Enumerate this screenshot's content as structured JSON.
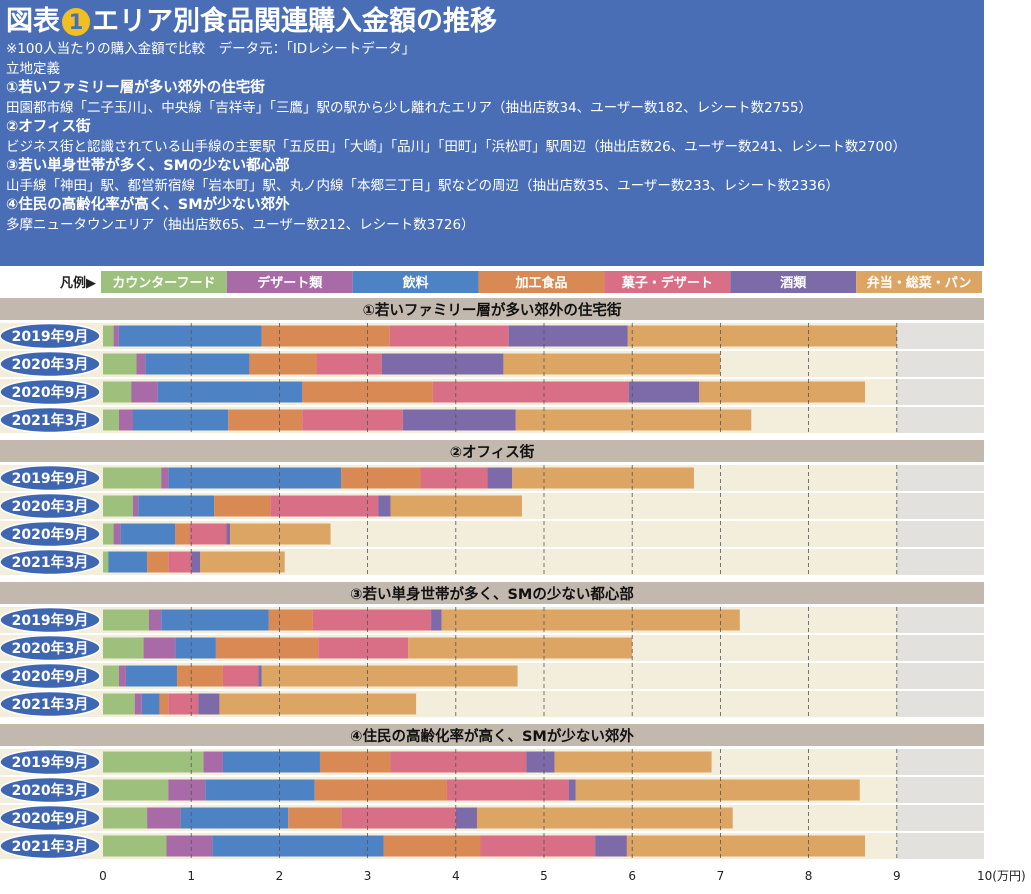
{
  "header": {
    "title_prefix": "図表",
    "title_number": "1",
    "title": "エリア別食品関連購入金額の推移",
    "note": "※100人当たりの購入金額で比較　データ元：「IDレシートデータ」",
    "def_heading": "立地定義",
    "areas": [
      {
        "name": "①若いファミリー層が多い郊外の住宅街",
        "desc": "田園都市線「二子玉川」、中央線「吉祥寺」「三鷹」駅の駅から少し離れたエリア（抽出店数34、ユーザー数182、レシート数2755）"
      },
      {
        "name": "②オフィス街",
        "desc": "ビジネス街と認識されている山手線の主要駅「五反田」「大崎」「品川」「田町」「浜松町」駅周辺（抽出店数26、ユーザー数241、レシート数2700）"
      },
      {
        "name": "③若い単身世帯が多く、SMの少ない都心部",
        "desc": "山手線「神田」駅、都営新宿線「岩本町」駅、丸ノ内線「本郷三丁目」駅などの周辺（抽出店数35、ユーザー数233、レシート数2336）"
      },
      {
        "name": "④住民の高齢化率が高く、SMが少ない郊外",
        "desc": "多摩ニュータウンエリア（抽出店数65、ユーザー数212、レシート数3726）"
      }
    ]
  },
  "legend_label": "凡例▶",
  "colors": {
    "header_bg": "#4a6eb5",
    "group_header_bg": "#c3b8ad",
    "band_cream": "#f3eedc",
    "band_gray": "#e3e1de",
    "label_oval": "#3f67b1"
  },
  "chart_data": {
    "type": "bar",
    "orientation": "horizontal",
    "stacked": true,
    "unit": "(万円)",
    "xlim": [
      0,
      10
    ],
    "xticks": [
      0,
      1,
      2,
      3,
      4,
      5,
      6,
      7,
      8,
      9,
      10
    ],
    "xtick_labels": [
      "0",
      "1",
      "2",
      "3",
      "4",
      "5",
      "6",
      "7",
      "8",
      "9",
      "10(万円)"
    ],
    "series": [
      {
        "name": "カウンターフード",
        "color": "#9dc07c"
      },
      {
        "name": "デザート類",
        "color": "#a96aa8"
      },
      {
        "name": "飲料",
        "color": "#4d82c4"
      },
      {
        "name": "加工食品",
        "color": "#d98a54"
      },
      {
        "name": "菓子・デザート",
        "color": "#d96f86"
      },
      {
        "name": "酒類",
        "color": "#7c6aa9"
      },
      {
        "name": "弁当・総菜・パン",
        "color": "#dca563"
      }
    ],
    "groups": [
      {
        "title": "①若いファミリー層が多い郊外の住宅街",
        "rows": [
          {
            "label": "2019年9月",
            "values": [
              0.12,
              0.06,
              1.62,
              1.45,
              1.35,
              1.35,
              3.05
            ]
          },
          {
            "label": "2020年3月",
            "values": [
              0.38,
              0.1,
              1.18,
              0.76,
              0.74,
              1.38,
              2.46
            ]
          },
          {
            "label": "2020年9月",
            "values": [
              0.32,
              0.3,
              1.64,
              1.48,
              2.22,
              0.8,
              1.88
            ]
          },
          {
            "label": "2021年3月",
            "values": [
              0.18,
              0.16,
              1.08,
              0.84,
              1.14,
              1.28,
              2.67
            ]
          }
        ]
      },
      {
        "title": "②オフィス街",
        "rows": [
          {
            "label": "2019年9月",
            "values": [
              0.66,
              0.08,
              1.96,
              0.9,
              0.76,
              0.28,
              2.06
            ]
          },
          {
            "label": "2020年3月",
            "values": [
              0.34,
              0.06,
              0.86,
              0.64,
              1.22,
              0.14,
              1.49
            ]
          },
          {
            "label": "2020年9月",
            "values": [
              0.12,
              0.08,
              0.62,
              0.16,
              0.42,
              0.04,
              1.14
            ]
          },
          {
            "label": "2021年3月",
            "values": [
              0.06,
              0.0,
              0.44,
              0.24,
              0.26,
              0.1,
              0.96
            ]
          }
        ]
      },
      {
        "title": "③若い単身世帯が多く、SMの少ない都心部",
        "rows": [
          {
            "label": "2019年9月",
            "values": [
              0.52,
              0.14,
              1.22,
              0.5,
              1.34,
              0.12,
              3.38
            ]
          },
          {
            "label": "2020年3月",
            "values": [
              0.46,
              0.36,
              0.46,
              1.16,
              1.02,
              0.0,
              2.54
            ]
          },
          {
            "label": "2020年9月",
            "values": [
              0.18,
              0.08,
              0.58,
              0.52,
              0.4,
              0.04,
              2.9
            ]
          },
          {
            "label": "2021年3月",
            "values": [
              0.36,
              0.08,
              0.2,
              0.1,
              0.34,
              0.24,
              2.23
            ]
          }
        ]
      },
      {
        "title": "④住民の高齢化率が高く、SMが少ない郊外",
        "rows": [
          {
            "label": "2019年9月",
            "values": [
              1.14,
              0.22,
              1.1,
              0.8,
              1.54,
              0.32,
              1.78
            ]
          },
          {
            "label": "2020年3月",
            "values": [
              0.74,
              0.42,
              1.24,
              1.5,
              1.38,
              0.08,
              3.22
            ]
          },
          {
            "label": "2020年9月",
            "values": [
              0.5,
              0.38,
              1.22,
              0.6,
              1.3,
              0.24,
              2.9
            ]
          },
          {
            "label": "2021年3月",
            "values": [
              0.72,
              0.52,
              1.94,
              1.1,
              1.3,
              0.36,
              2.7
            ]
          }
        ]
      }
    ]
  }
}
